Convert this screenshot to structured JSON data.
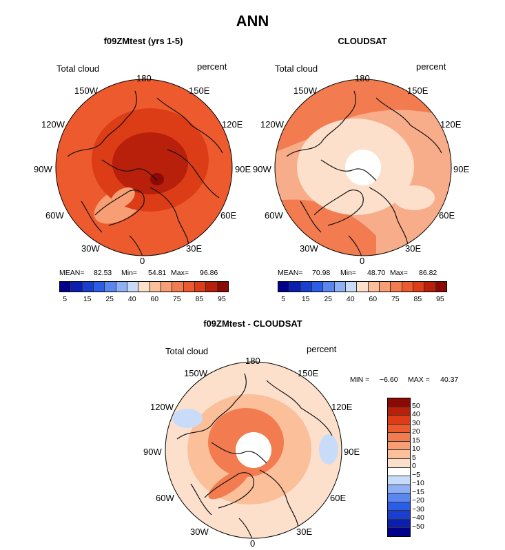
{
  "title": "ANN",
  "panels": [
    {
      "title": "f09ZMtest (yrs 1-5)",
      "variable": "Total cloud",
      "units": "percent",
      "lon_labels": {
        "top": "180",
        "tr": "150E",
        "r1": "120E",
        "r2": "90E",
        "r3": "60E",
        "br": "30E",
        "bottom": "0",
        "bl": "30W",
        "l3": "60W",
        "l2": "90W",
        "l1": "120W",
        "tl": "150W"
      },
      "stats": {
        "mean_label": "MEAN=",
        "mean": "82.53",
        "min_label": "Min=",
        "min": "54.81",
        "max_label": "Max=",
        "max": "96.86"
      }
    },
    {
      "title": "CLOUDSAT",
      "variable": "Total cloud",
      "units": "percent",
      "lon_labels": {
        "top": "180",
        "tr": "150E",
        "r1": "120E",
        "r2": "90E",
        "r3": "60E",
        "br": "30E",
        "bottom": "0",
        "bl": "30W",
        "l3": "60W",
        "l2": "90W",
        "l1": "120W",
        "tl": "150W"
      },
      "stats": {
        "mean_label": "MEAN=",
        "mean": "70.98",
        "min_label": "Min=",
        "min": "48.70",
        "max_label": "Max=",
        "max": "86.82"
      }
    },
    {
      "title": "f09ZMtest - CLOUDSAT",
      "variable": "Total cloud",
      "units": "percent",
      "lon_labels": {
        "top": "180",
        "tr": "150E",
        "r1": "120E",
        "r2": "90E",
        "r3": "60E",
        "br": "30E",
        "bottom": "0",
        "bl": "30W",
        "l3": "60W",
        "l2": "90W",
        "l1": "120W",
        "tl": "150W"
      },
      "stats": {
        "min_label": "MIN =",
        "min": "−6.60",
        "max_label": "MAX =",
        "max": "40.37"
      }
    }
  ],
  "colorbar_abs": {
    "colors": [
      "#00008b",
      "#0a1fb0",
      "#1a3fd0",
      "#2b5ee8",
      "#5b86f0",
      "#8fb0f5",
      "#c8dcfa",
      "#fde0cc",
      "#fbbf9a",
      "#f79e74",
      "#f27c4f",
      "#ec5a2e",
      "#dc3c16",
      "#b8200b",
      "#8b0a05"
    ],
    "ticks": [
      "5",
      "15",
      "25",
      "40",
      "60",
      "75",
      "85",
      "95"
    ]
  },
  "colorbar_diff": {
    "colors": [
      "#8b0a05",
      "#b8200b",
      "#dc3c16",
      "#ec5a2e",
      "#f27c4f",
      "#f79e74",
      "#fbbf9a",
      "#fde0cc",
      "#ffffff",
      "#c8dcfa",
      "#8fb0f5",
      "#5b86f0",
      "#2b5ee8",
      "#1a3fd0",
      "#0a1fb0",
      "#00008b"
    ],
    "ticks": [
      "50",
      "40",
      "30",
      "20",
      "15",
      "10",
      "5",
      "0",
      "−5",
      "−10",
      "−15",
      "−20",
      "−30",
      "−40",
      "−50"
    ]
  },
  "map_colors": {
    "p1_bg": "#ec5a2e",
    "p1_mid": "#dc3c16",
    "p1_core": "#b8200b",
    "p1_peak": "#8b0a05",
    "p1_low": "#f79e74",
    "p2_bg": "#f8ad8a",
    "p2_band": "#f27c4f",
    "p2_light": "#fde0cc",
    "p2_hole": "#ffffff",
    "p3_bg": "#fde0cc",
    "p3_mid": "#fbbf9a",
    "p3_core": "#f27c4f",
    "p3_neg": "#c8dcfa",
    "p3_hole": "#ffffff",
    "coast": "#111111"
  }
}
